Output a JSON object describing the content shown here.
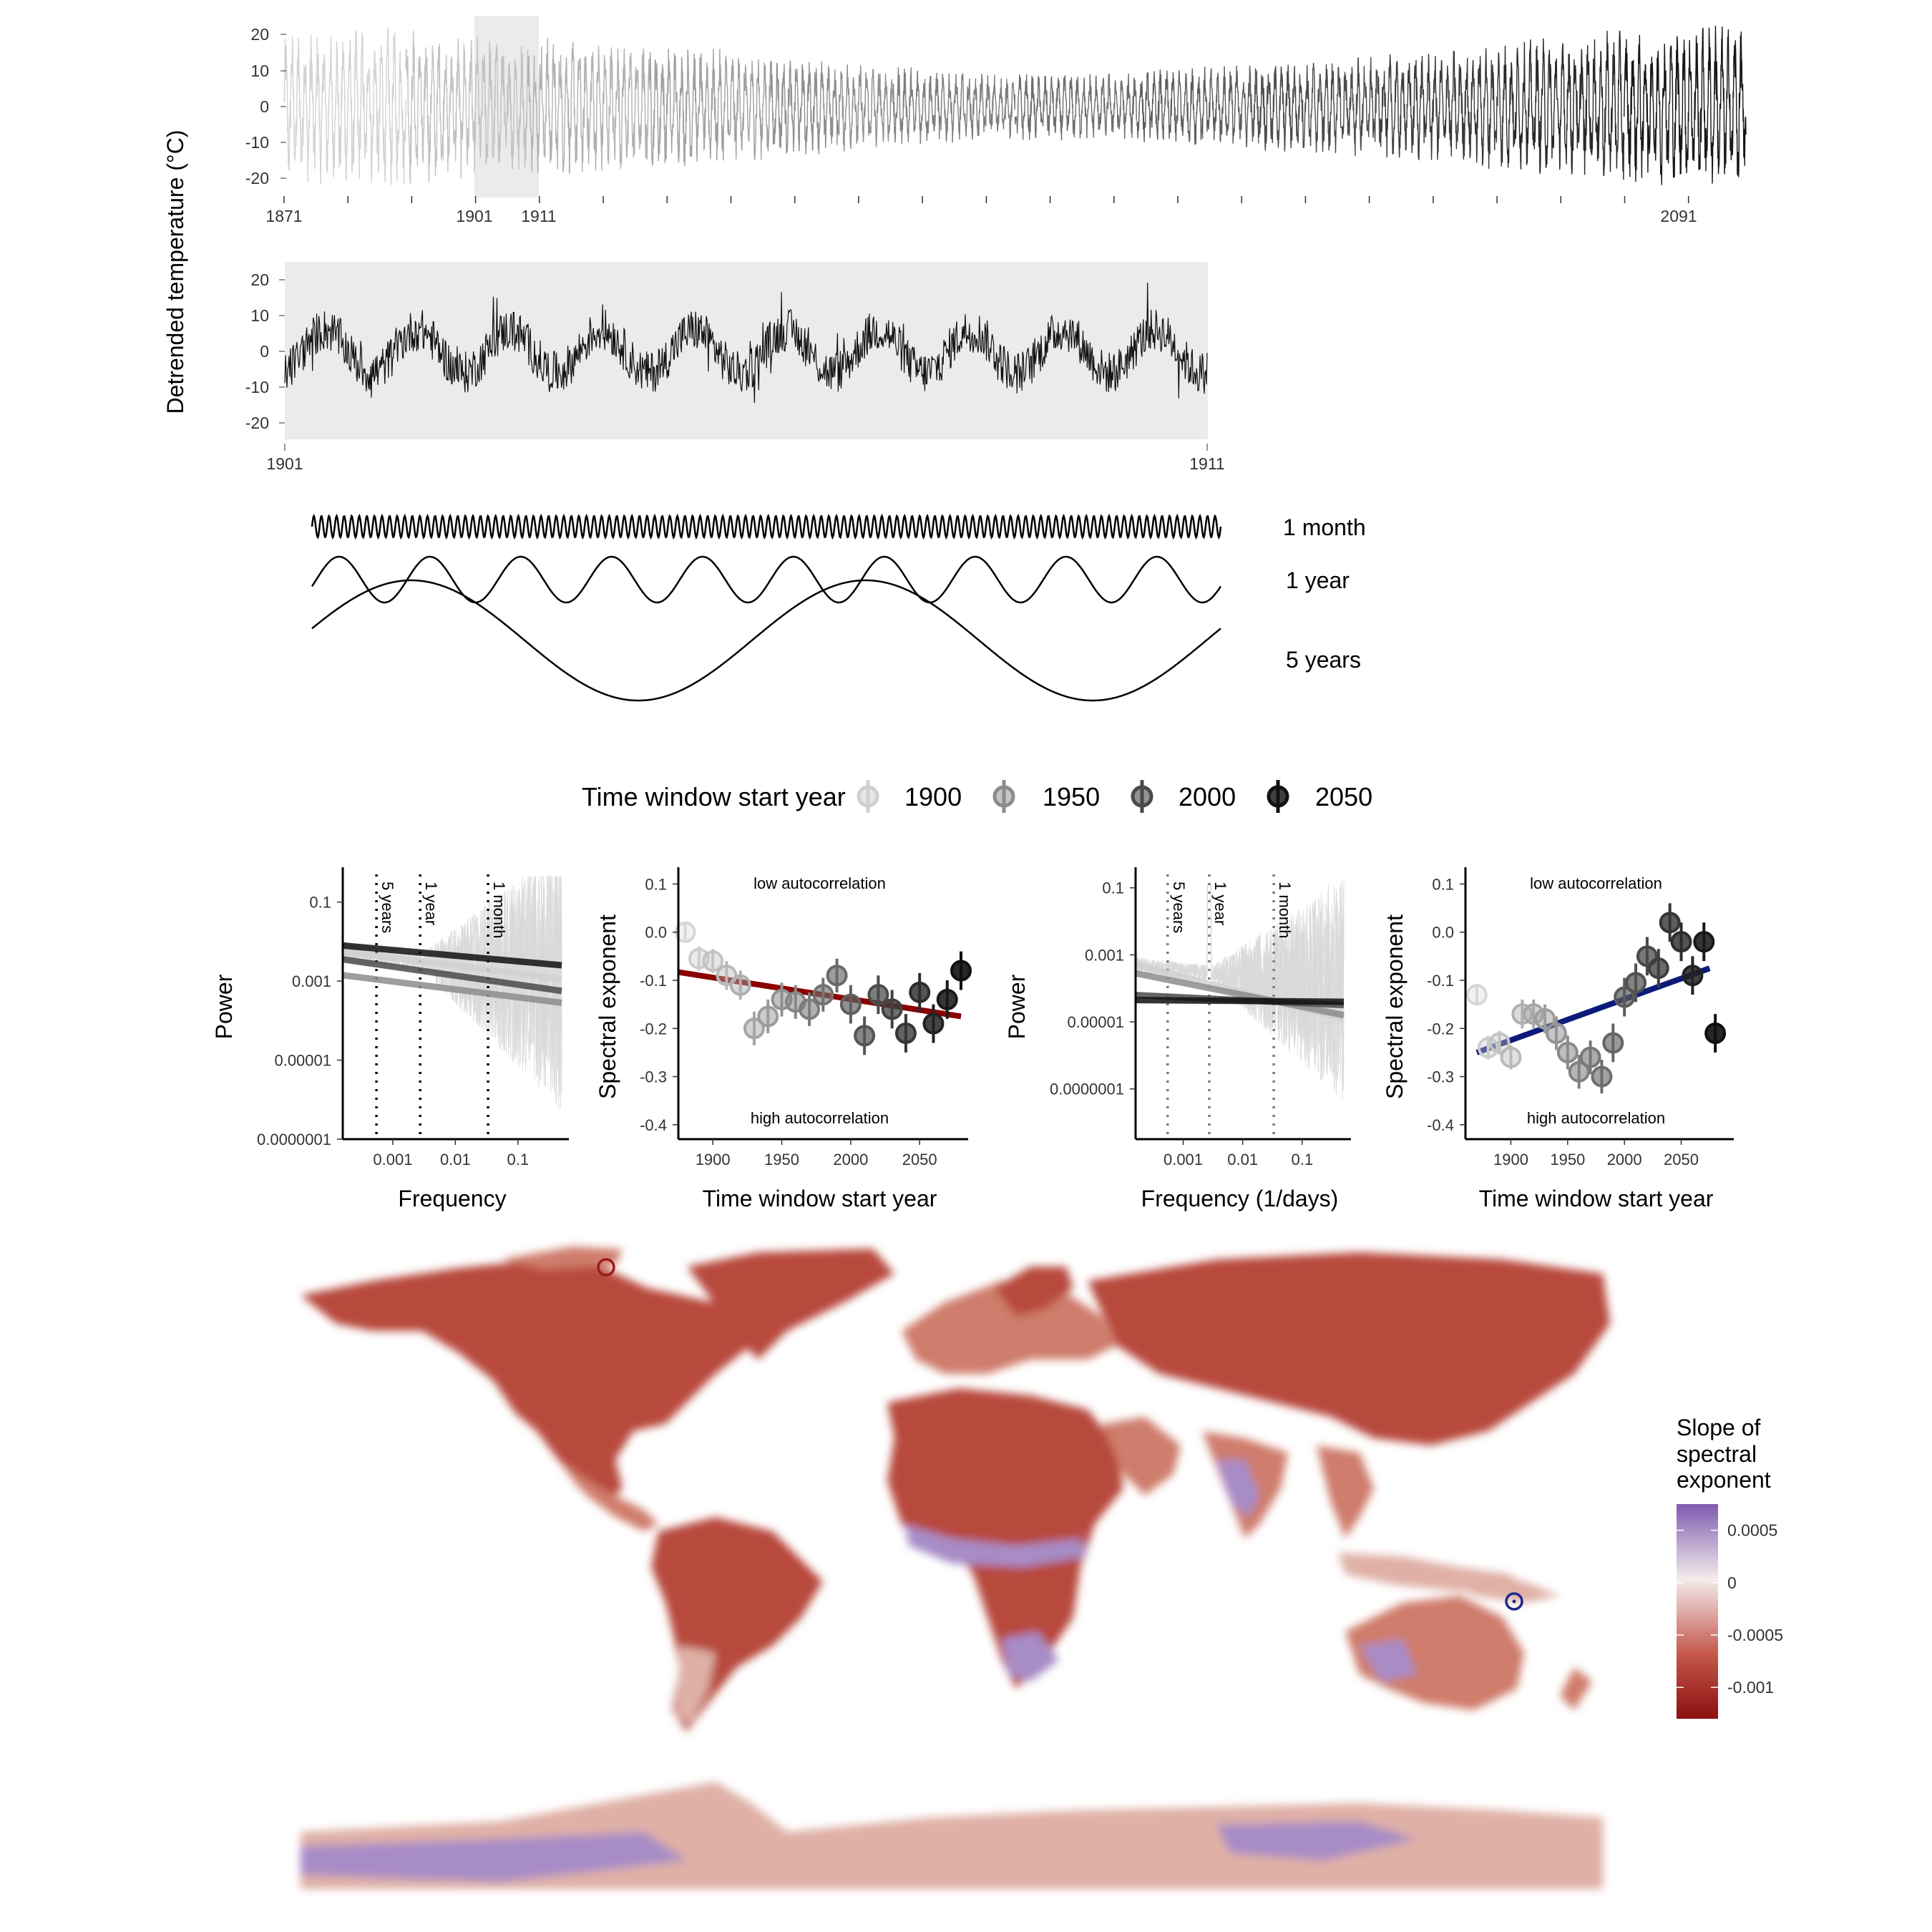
{
  "colors": {
    "highlight_band": "#ebebeb",
    "red_fit": "#8b0000",
    "blue_fit": "#0c1a7a",
    "guide_lines": "#6b7a8f",
    "map_purple": "#7f5bb0",
    "map_white": "#f4ecec",
    "map_red": "#8c1010"
  },
  "timeseries": {
    "ylabel": "Detrended temperature (°C)",
    "top_yticks": [
      "20",
      "10",
      "0",
      "-10",
      "-20"
    ],
    "top_xticks": [
      "1871",
      "1901",
      "1911",
      "2091"
    ],
    "zoom_yticks": [
      "20",
      "10",
      "0",
      "-10",
      "-20"
    ],
    "zoom_xticks": [
      "1901",
      "1911"
    ]
  },
  "waves": {
    "labels": [
      "1 month",
      "1 year",
      "5 years"
    ]
  },
  "legend": {
    "title": "Time window start year",
    "items": [
      "1900",
      "1950",
      "2000",
      "2050"
    ],
    "shades": [
      "#d0d0d0",
      "#8c8c8c",
      "#4a4a4a",
      "#111111"
    ]
  },
  "chart_data": [
    {
      "type": "line",
      "title": "",
      "xlabel": "",
      "ylabel": "Detrended temperature (°C)",
      "xlim": [
        1871,
        2100
      ],
      "ylim": [
        -22,
        24
      ],
      "x_tick_labels": [
        "1871",
        "1901",
        "1911",
        "2091"
      ],
      "y_tick_labels": [
        "20",
        "10",
        "0",
        "-10",
        "-20"
      ],
      "highlight_years": [
        1901,
        1911
      ],
      "series": [
        {
          "x": [
            1871,
            1890,
            1900,
            1920,
            1950,
            1980,
            2000,
            2020,
            2050,
            2080,
            2100
          ],
          "envelope_half_amplitude": [
            18,
            19,
            17,
            16,
            12,
            8,
            8,
            10,
            13,
            18,
            20
          ]
        }
      ]
    },
    {
      "type": "line",
      "xlabel": "",
      "ylabel": "Detrended temperature (°C)",
      "xlim": [
        1901,
        1911
      ],
      "ylim": [
        -22,
        24
      ],
      "x_tick_labels": [
        "1901",
        "1911"
      ],
      "y_tick_labels": [
        "20",
        "10",
        "0",
        "-10",
        "-20"
      ],
      "cycles": 10
    },
    {
      "type": "scatter",
      "panel": "power spectrum (left)",
      "xlabel": "Frequency",
      "ylabel": "Power",
      "x_tick_labels": [
        "0.001",
        "0.01",
        "0.1"
      ],
      "y_tick_labels": [
        "0.1",
        "0.001",
        "0.00001",
        "0.0000001"
      ],
      "xlim_log10": [
        -3.8,
        -0.3
      ],
      "ylim_log10": [
        -7.0,
        -0.3
      ],
      "guide_lines": [
        {
          "label": "5 years",
          "frequency": 0.000548
        },
        {
          "label": "1 year",
          "frequency": 0.00274
        },
        {
          "label": "1 month",
          "frequency": 0.0333
        }
      ],
      "fit_lines": [
        {
          "name": "1900",
          "log10_power_at_xlim": [
            -2.25,
            -2.95
          ]
        },
        {
          "name": "1950",
          "log10_power_at_xlim": [
            -2.85,
            -3.55
          ]
        },
        {
          "name": "2000",
          "log10_power_at_xlim": [
            -2.45,
            -3.25
          ]
        },
        {
          "name": "2050",
          "log10_power_at_xlim": [
            -2.1,
            -2.6
          ]
        }
      ]
    },
    {
      "type": "scatter",
      "panel": "spectral exponent (left)",
      "xlabel": "Time window start year",
      "ylabel": "Spectral exponent",
      "xlim": [
        1875,
        2080
      ],
      "ylim": [
        -0.43,
        0.12
      ],
      "x_tick_labels": [
        "1900",
        "1950",
        "2000",
        "2050"
      ],
      "y_tick_labels": [
        "0.1",
        "0.0",
        "-0.1",
        "-0.2",
        "-0.3",
        "-0.4"
      ],
      "annotations": [
        "low autocorrelation",
        "high autocorrelation"
      ],
      "fit_line": {
        "x": [
          1875,
          2080
        ],
        "y": [
          -0.083,
          -0.175
        ]
      },
      "x": [
        1880,
        1890,
        1900,
        1910,
        1920,
        1930,
        1940,
        1950,
        1960,
        1970,
        1980,
        1990,
        2000,
        2010,
        2020,
        2030,
        2040,
        2050,
        2060,
        2070,
        2080
      ],
      "y": [
        0.0,
        -0.055,
        -0.06,
        -0.09,
        -0.11,
        -0.2,
        -0.175,
        -0.14,
        -0.145,
        -0.16,
        -0.13,
        -0.09,
        -0.15,
        -0.215,
        -0.13,
        -0.16,
        -0.21,
        -0.125,
        -0.19,
        -0.14,
        -0.08
      ],
      "err": [
        0.02,
        0.025,
        0.025,
        0.03,
        0.03,
        0.035,
        0.035,
        0.035,
        0.035,
        0.035,
        0.035,
        0.035,
        0.04,
        0.04,
        0.04,
        0.04,
        0.04,
        0.04,
        0.04,
        0.04,
        0.04
      ]
    },
    {
      "type": "scatter",
      "panel": "power spectrum (right)",
      "xlabel": "Frequency (1/days)",
      "ylabel": "Power",
      "x_tick_labels": [
        "0.001",
        "0.01",
        "0.1"
      ],
      "y_tick_labels": [
        "0.1",
        "0.001",
        "0.00001",
        "0.0000001"
      ],
      "xlim_log10": [
        -3.8,
        -0.3
      ],
      "ylim_log10": [
        -8.5,
        -0.6
      ],
      "guide_lines": [
        {
          "label": "5 years",
          "frequency": 0.000548
        },
        {
          "label": "1 year",
          "frequency": 0.00274
        },
        {
          "label": "1 month",
          "frequency": 0.0333
        }
      ],
      "fit_lines": [
        {
          "name": "1900",
          "log10_power_at_xlim": [
            -3.3,
            -4.9
          ]
        },
        {
          "name": "1950",
          "log10_power_at_xlim": [
            -3.55,
            -4.8
          ]
        },
        {
          "name": "2000",
          "log10_power_at_xlim": [
            -4.2,
            -4.5
          ]
        },
        {
          "name": "2050",
          "log10_power_at_xlim": [
            -4.35,
            -4.4
          ]
        }
      ]
    },
    {
      "type": "scatter",
      "panel": "spectral exponent (right)",
      "xlabel": "Time window start year",
      "ylabel": "Spectral exponent",
      "xlim": [
        1860,
        2090
      ],
      "ylim": [
        -0.43,
        0.12
      ],
      "x_tick_labels": [
        "1900",
        "1950",
        "2000",
        "2050"
      ],
      "y_tick_labels": [
        "0.1",
        "0.0",
        "-0.1",
        "-0.2",
        "-0.3",
        "-0.4"
      ],
      "annotations": [
        "low autocorrelation",
        "high autocorrelation"
      ],
      "fit_line": {
        "x": [
          1870,
          2075
        ],
        "y": [
          -0.25,
          -0.075
        ]
      },
      "x": [
        1870,
        1880,
        1890,
        1900,
        1910,
        1920,
        1930,
        1940,
        1950,
        1960,
        1970,
        1980,
        1990,
        2000,
        2010,
        2020,
        2030,
        2040,
        2050,
        2060,
        2070,
        2080
      ],
      "y": [
        -0.13,
        -0.24,
        -0.23,
        -0.26,
        -0.17,
        -0.17,
        -0.18,
        -0.21,
        -0.25,
        -0.29,
        -0.26,
        -0.3,
        -0.23,
        -0.135,
        -0.105,
        -0.05,
        -0.075,
        0.02,
        -0.02,
        -0.09,
        -0.02,
        -0.21
      ],
      "err": [
        0.02,
        0.025,
        0.025,
        0.025,
        0.03,
        0.03,
        0.03,
        0.035,
        0.035,
        0.035,
        0.035,
        0.035,
        0.04,
        0.04,
        0.04,
        0.04,
        0.04,
        0.04,
        0.04,
        0.04,
        0.04,
        0.04
      ]
    },
    {
      "type": "heatmap",
      "panel": "world map",
      "legend_title": [
        "Slope of",
        "spectral",
        "exponent"
      ],
      "colorbar_ticks": [
        "0.0005",
        "0",
        "-0.0005",
        "-0.001"
      ],
      "colorbar_values": [
        0.0005,
        0.0,
        -0.0005,
        -0.001
      ],
      "value_range": [
        -0.0013,
        0.00075
      ],
      "markers": [
        {
          "location": "northern Greenland / Arctic Canada",
          "color": "red"
        },
        {
          "location": "New Guinea",
          "color": "blue"
        }
      ]
    }
  ]
}
